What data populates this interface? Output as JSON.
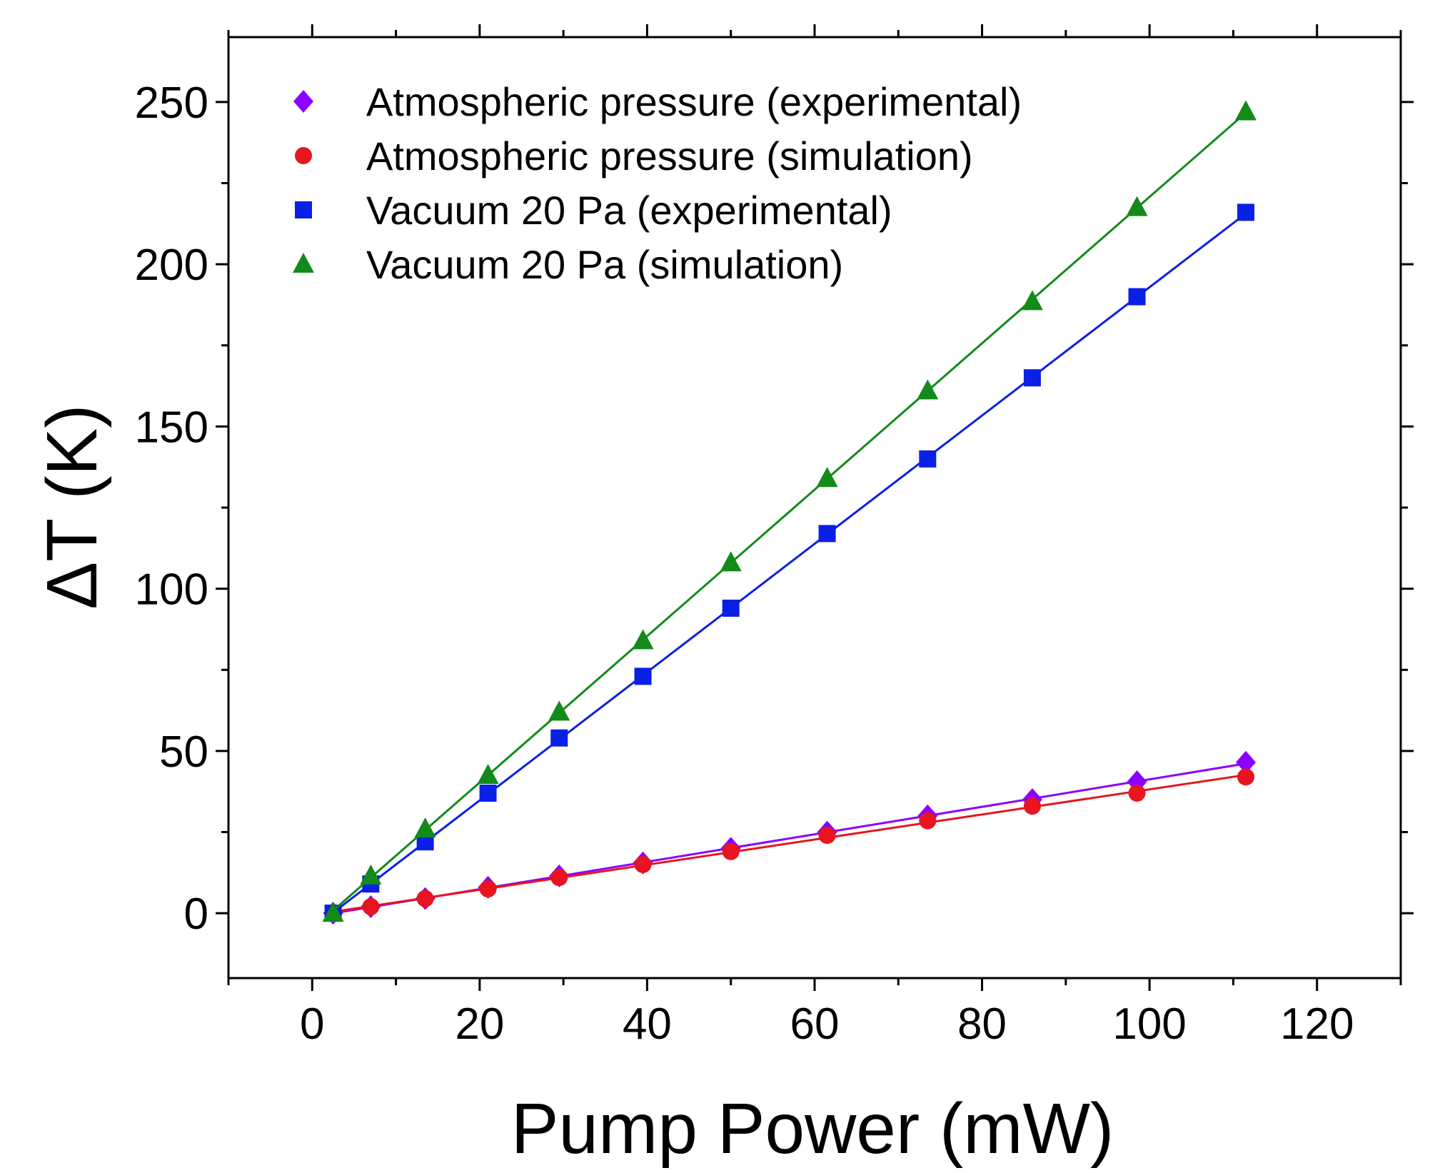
{
  "chart_data": {
    "type": "scatter",
    "xlabel": "Pump Power (mW)",
    "ylabel": "ΔT (K)",
    "xlim": [
      -10,
      130
    ],
    "ylim": [
      -20,
      270
    ],
    "xticks": [
      0,
      20,
      40,
      60,
      80,
      100,
      120
    ],
    "yticks": [
      0,
      50,
      100,
      150,
      200,
      250
    ],
    "grid": false,
    "legend_position": "top-left",
    "series": [
      {
        "name": "Atmospheric pressure (experimental)",
        "marker": "diamond",
        "color": "#8B00FF",
        "fit_line": true,
        "x": [
          2.5,
          7,
          13.5,
          21,
          29.5,
          39.5,
          50,
          61.5,
          73.5,
          86,
          98.5,
          111.5
        ],
        "y": [
          0,
          2,
          4.5,
          8,
          11.5,
          15.5,
          20,
          25,
          30,
          35,
          40.5,
          46.5
        ]
      },
      {
        "name": "Atmospheric pressure (simulation)",
        "marker": "circle",
        "color": "#E8141F",
        "fit_line": true,
        "x": [
          2.5,
          7,
          13.5,
          21,
          29.5,
          39.5,
          50,
          61.5,
          73.5,
          86,
          98.5,
          111.5
        ],
        "y": [
          0,
          2,
          4.5,
          7.5,
          11,
          15,
          19,
          24,
          28.5,
          33,
          37,
          42
        ]
      },
      {
        "name": "Vacuum 20 Pa (experimental)",
        "marker": "square",
        "color": "#0A20E6",
        "fit_line": true,
        "x": [
          2.5,
          7,
          13.5,
          21,
          29.5,
          39.5,
          50,
          61.5,
          73.5,
          86,
          98.5,
          111.5
        ],
        "y": [
          0,
          9,
          22,
          37,
          54,
          73,
          94,
          117,
          140,
          165,
          190,
          216
        ]
      },
      {
        "name": "Vacuum 20 Pa (simulation)",
        "marker": "triangle",
        "color": "#138A1A",
        "fit_line": true,
        "x": [
          2.5,
          7,
          13.5,
          21,
          29.5,
          39.5,
          50,
          61.5,
          73.5,
          86,
          98.5,
          111.5
        ],
        "y": [
          0,
          11.5,
          26,
          42.5,
          62,
          84,
          108,
          134,
          161,
          188.5,
          217.5,
          247
        ]
      }
    ]
  }
}
